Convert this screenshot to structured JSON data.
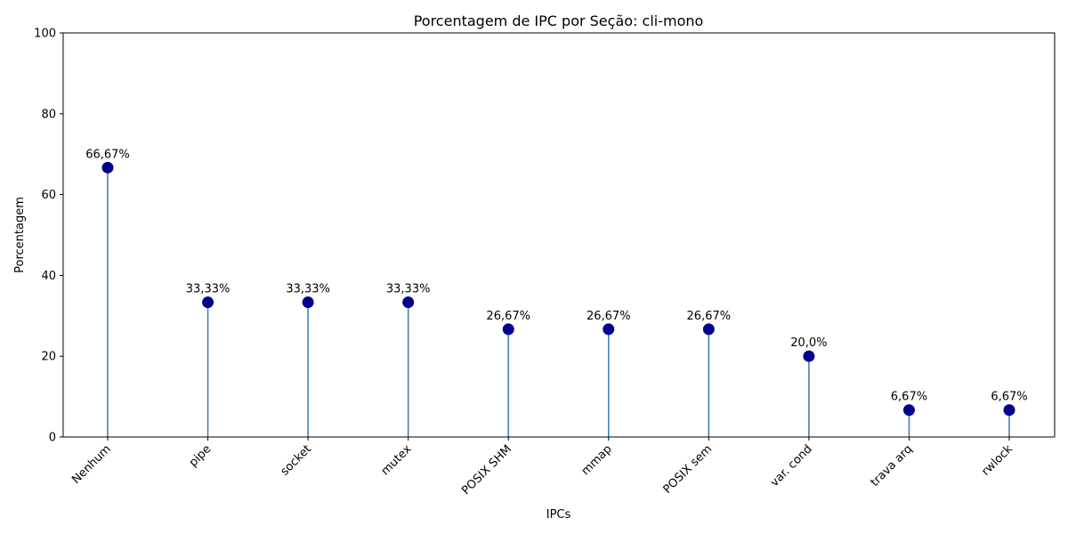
{
  "chart_data": {
    "type": "lollipop",
    "title": "Porcentagem de IPC por Seção: cli-mono",
    "xlabel": "IPCs",
    "ylabel": "Porcentagem",
    "ylim": [
      0,
      100
    ],
    "yticks": [
      0,
      20,
      40,
      60,
      80,
      100
    ],
    "ytick_labels": [
      "0",
      "20",
      "40",
      "60",
      "80",
      "100"
    ],
    "grid": false,
    "categories": [
      "Nenhum",
      "pipe",
      "socket",
      "mutex",
      "POSIX SHM",
      "mmap",
      "POSIX sem",
      "var. cond",
      "trava arq",
      "rwlock"
    ],
    "values": [
      66.67,
      33.33,
      33.33,
      33.33,
      26.67,
      26.67,
      26.67,
      20.0,
      6.67,
      6.67
    ],
    "value_labels": [
      "66,67%",
      "33,33%",
      "33,33%",
      "33,33%",
      "26,67%",
      "26,67%",
      "26,67%",
      "20,0%",
      "6,67%",
      "6,67%"
    ],
    "colors": {
      "marker": "#00008b",
      "stem": "#4682b4",
      "axis": "#000000"
    }
  }
}
